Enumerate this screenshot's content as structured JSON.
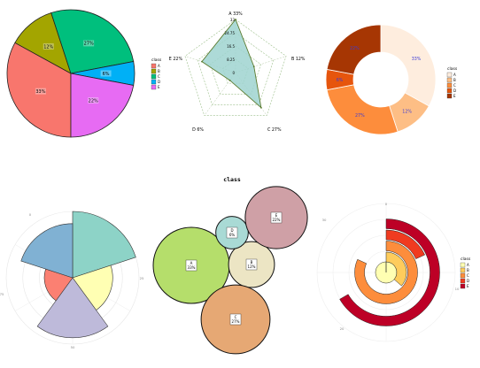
{
  "center_label": "class",
  "chart_data": [
    {
      "type": "pie",
      "legend": {
        "title": "class",
        "position": "right"
      },
      "categories": [
        "A",
        "B",
        "C",
        "D",
        "E"
      ],
      "slice_labels": [
        "33%",
        "12%",
        "27%",
        "6%",
        "22%"
      ],
      "values": [
        33,
        12,
        27,
        6,
        22
      ],
      "colors": [
        "#F8766D",
        "#A3A500",
        "#00BF7D",
        "#00B0F6",
        "#E76BF3"
      ]
    },
    {
      "type": "radar",
      "axes": [
        "A",
        "B",
        "C",
        "D",
        "E"
      ],
      "axis_labels": [
        "A  33%",
        "B  12%",
        "C  27%",
        "D  6%",
        "E  22%"
      ],
      "values": [
        33,
        12,
        27,
        6,
        22
      ],
      "rlim": [
        0,
        33
      ],
      "ring_labels": [
        "0",
        "8.25",
        "16.5",
        "24.75",
        "33"
      ],
      "fill": "#9fd3d0",
      "stroke": "#5a7a2e"
    },
    {
      "type": "donut",
      "legend": {
        "title": "class",
        "position": "right"
      },
      "categories": [
        "A",
        "B",
        "C",
        "D",
        "E"
      ],
      "slice_labels": [
        "33%",
        "12%",
        "27%",
        "6%",
        "22%"
      ],
      "values": [
        33,
        12,
        27,
        6,
        22
      ],
      "colors": [
        "#FEEDDE",
        "#FDBE85",
        "#FD8D3C",
        "#E6550D",
        "#A63603"
      ]
    },
    {
      "type": "polar-bar",
      "categories": [
        "A",
        "B",
        "C",
        "D",
        "E"
      ],
      "values": [
        33,
        12,
        27,
        6,
        22
      ],
      "angle_labels": [
        "0",
        "25",
        "50",
        "75"
      ],
      "colors": [
        "#8DD3C7",
        "#FFFFB3",
        "#BEBADA",
        "#FB8072",
        "#80B1D3"
      ]
    },
    {
      "type": "bubble",
      "categories": [
        "A",
        "B",
        "C",
        "D",
        "E"
      ],
      "bubble_labels": [
        "A\n33%",
        "B\n12%",
        "C\n27%",
        "D\n6%",
        "E\n22%"
      ],
      "values": [
        33,
        12,
        27,
        6,
        22
      ],
      "colors": [
        "#B5DE6B",
        "#ECE5C4",
        "#E6A874",
        "#A9DAD5",
        "#CFA0A6"
      ]
    },
    {
      "type": "radial-bar",
      "legend": {
        "title": "class",
        "position": "right"
      },
      "categories": [
        "A",
        "B",
        "C",
        "D",
        "E"
      ],
      "values": [
        33,
        12,
        27,
        6,
        22
      ],
      "angle_labels": [
        "0",
        "10",
        "20",
        "30"
      ],
      "colors": [
        "#FFFFB2",
        "#FECC5C",
        "#FD8D3C",
        "#F03B20",
        "#BD0026"
      ]
    }
  ]
}
